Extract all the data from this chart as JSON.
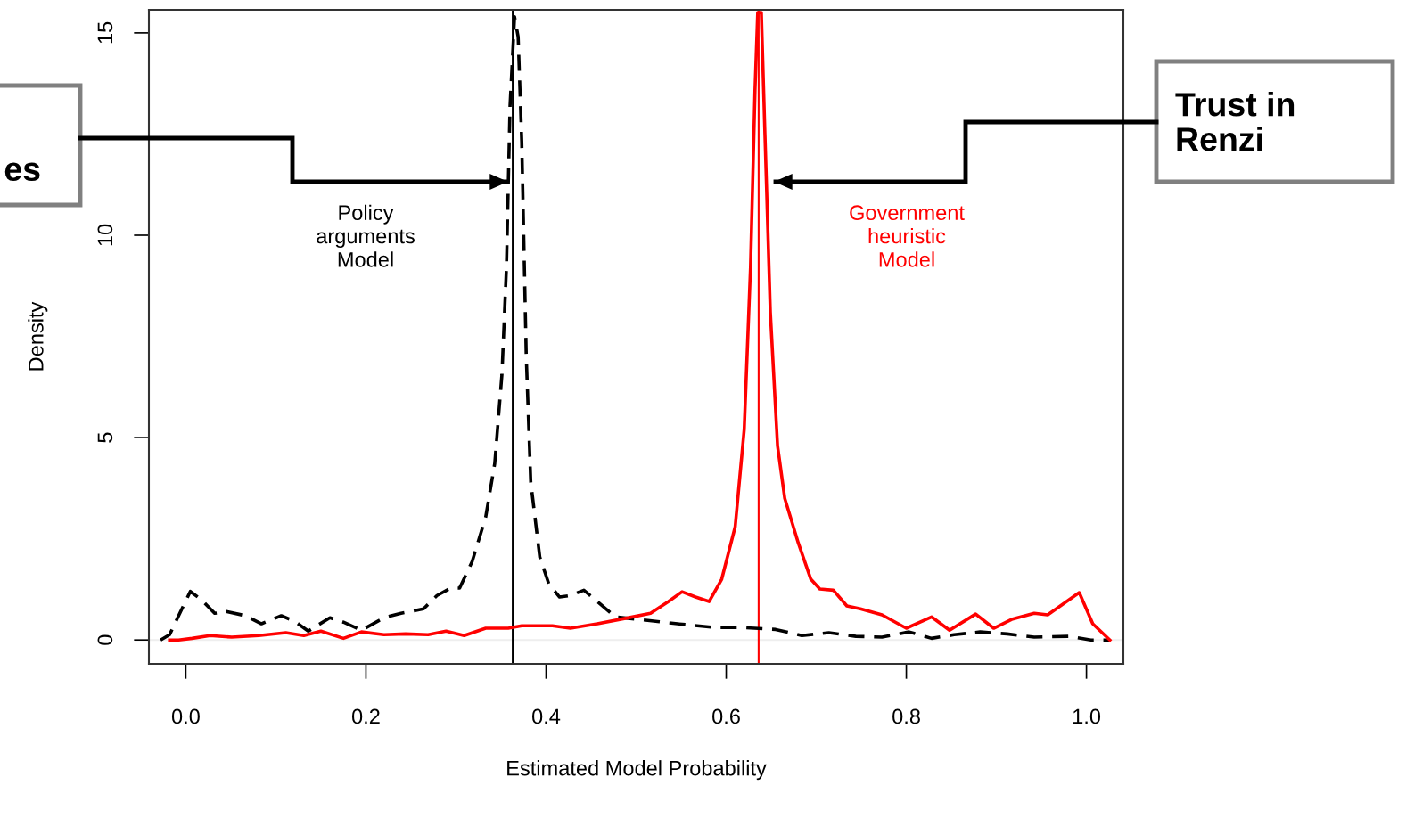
{
  "chart_data": {
    "type": "line",
    "xlabel": "Estimated Model Probability",
    "ylabel": "Density",
    "xlim": [
      -0.041,
      1.041
    ],
    "ylim": [
      -0.59,
      15.57
    ],
    "xticks": [
      {
        "value": 0,
        "label": "0.0"
      },
      {
        "value": 0.2,
        "label": "0.2"
      },
      {
        "value": 0.4,
        "label": "0.4"
      },
      {
        "value": 0.6,
        "label": "0.6"
      },
      {
        "value": 0.8,
        "label": "0.8"
      },
      {
        "value": 1,
        "label": "1.0"
      }
    ],
    "yticks": [
      0,
      5,
      10,
      15
    ],
    "grid": false,
    "legend": false,
    "marker": "none",
    "series": [
      {
        "name": "Policy arguments Model",
        "color": "#000000",
        "line_style": "dashed",
        "x": [
          -0.028,
          -0.018,
          -0.008,
          0.005,
          0.017,
          0.032,
          0.046,
          0.066,
          0.084,
          0.106,
          0.121,
          0.136,
          0.16,
          0.175,
          0.195,
          0.22,
          0.239,
          0.264,
          0.279,
          0.294,
          0.304,
          0.318,
          0.333,
          0.343,
          0.351,
          0.356,
          0.36,
          0.365,
          0.369,
          0.373,
          0.378,
          0.383,
          0.393,
          0.403,
          0.415,
          0.427,
          0.442,
          0.457,
          0.477,
          0.506,
          0.546,
          0.586,
          0.615,
          0.655,
          0.684,
          0.714,
          0.744,
          0.773,
          0.803,
          0.828,
          0.853,
          0.882,
          0.912,
          0.942,
          0.981,
          1.005,
          1.026
        ],
        "values": [
          0,
          0.13,
          0.6,
          1.2,
          1.0,
          0.66,
          0.7,
          0.6,
          0.4,
          0.6,
          0.46,
          0.22,
          0.55,
          0.44,
          0.24,
          0.55,
          0.66,
          0.77,
          1.1,
          1.28,
          1.28,
          1.94,
          3.04,
          4.36,
          6.56,
          9.2,
          13.2,
          15.4,
          14.9,
          12.3,
          7.0,
          3.9,
          2.05,
          1.39,
          1.06,
          1.1,
          1.23,
          0.95,
          0.57,
          0.5,
          0.4,
          0.31,
          0.31,
          0.26,
          0.11,
          0.18,
          0.09,
          0.07,
          0.2,
          0.04,
          0.13,
          0.2,
          0.15,
          0.07,
          0.09,
          0,
          0
        ]
      },
      {
        "name": "Government heuristic Model",
        "color": "#ff0000",
        "line_style": "solid",
        "x": [
          -0.018,
          -0.008,
          0.007,
          0.027,
          0.051,
          0.081,
          0.111,
          0.131,
          0.15,
          0.175,
          0.195,
          0.22,
          0.244,
          0.269,
          0.289,
          0.309,
          0.333,
          0.358,
          0.373,
          0.407,
          0.427,
          0.457,
          0.487,
          0.516,
          0.536,
          0.551,
          0.566,
          0.581,
          0.595,
          0.61,
          0.62,
          0.627,
          0.632,
          0.635,
          0.639,
          0.643,
          0.649,
          0.657,
          0.665,
          0.68,
          0.694,
          0.704,
          0.719,
          0.734,
          0.749,
          0.773,
          0.8,
          0.828,
          0.848,
          0.877,
          0.897,
          0.917,
          0.942,
          0.957,
          0.992,
          1.007,
          1.026
        ],
        "values": [
          0,
          0,
          0.04,
          0.11,
          0.07,
          0.11,
          0.18,
          0.11,
          0.22,
          0.04,
          0.2,
          0.13,
          0.15,
          0.13,
          0.22,
          0.11,
          0.29,
          0.29,
          0.35,
          0.35,
          0.29,
          0.4,
          0.53,
          0.66,
          0.95,
          1.19,
          1.06,
          0.95,
          1.5,
          2.8,
          5.2,
          9.2,
          13.6,
          15.5,
          15.5,
          12.5,
          8.1,
          4.8,
          3.5,
          2.4,
          1.5,
          1.26,
          1.23,
          0.84,
          0.77,
          0.62,
          0.29,
          0.57,
          0.24,
          0.64,
          0.29,
          0.51,
          0.66,
          0.62,
          1.17,
          0.4,
          0
        ]
      }
    ],
    "ref_lines": [
      {
        "axis": "y",
        "value": 0,
        "color": "#eeeeee"
      },
      {
        "axis": "x",
        "value": 0.363,
        "color": "#000000"
      },
      {
        "axis": "x",
        "value": 0.636,
        "color": "#ff0000"
      }
    ],
    "annotations": [
      "es",
      "Trust in\nRenzi"
    ]
  }
}
